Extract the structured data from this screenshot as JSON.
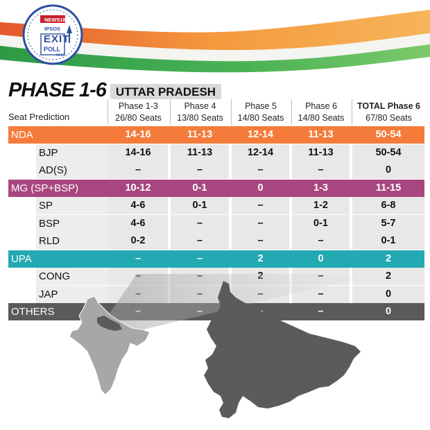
{
  "logo": {
    "brand": "NEWS18",
    "partner": "IPSOS",
    "line1": "EXIT",
    "line2": "POLL",
    "year": "2019"
  },
  "title": {
    "phase": "PHASE 1-6",
    "state": "UTTAR PRADESH"
  },
  "table": {
    "row_header": "Seat Prediction",
    "columns": [
      {
        "name": "Phase 1-3",
        "seats": "26/80 Seats",
        "bold": false
      },
      {
        "name": "Phase 4",
        "seats": "13/80 Seats",
        "bold": false
      },
      {
        "name": "Phase 5",
        "seats": "14/80 Seats",
        "bold": false
      },
      {
        "name": "Phase 6",
        "seats": "14/80 Seats",
        "bold": false
      },
      {
        "name": "TOTAL Phase 6",
        "seats": "67/80 Seats",
        "bold": true
      }
    ],
    "rows": [
      {
        "label": "NDA",
        "type": "group",
        "color": "#f47b3a",
        "values": [
          "14-16",
          "11-13",
          "12-14",
          "11-13",
          "50-54"
        ]
      },
      {
        "label": "BJP",
        "type": "party",
        "values": [
          "14-16",
          "11-13",
          "12-14",
          "11-13",
          "50-54"
        ]
      },
      {
        "label": "AD(S)",
        "type": "party",
        "values": [
          "–",
          "–",
          "–",
          "–",
          "0"
        ]
      },
      {
        "label": "MG (SP+BSP)",
        "type": "group",
        "color": "#a8477f",
        "values": [
          "10-12",
          "0-1",
          "0",
          "1-3",
          "11-15"
        ]
      },
      {
        "label": "SP",
        "type": "party",
        "values": [
          "4-6",
          "0-1",
          "–",
          "1-2",
          "6-8"
        ]
      },
      {
        "label": "BSP",
        "type": "party",
        "values": [
          "4-6",
          "–",
          "–",
          "0-1",
          "5-7"
        ]
      },
      {
        "label": "RLD",
        "type": "party",
        "values": [
          "0-2",
          "–",
          "–",
          "–",
          "0-1"
        ]
      },
      {
        "label": "UPA",
        "type": "group",
        "color": "#23a9b2",
        "values": [
          "–",
          "–",
          "2",
          "0",
          "2"
        ]
      },
      {
        "label": "CONG",
        "type": "party",
        "values": [
          "–",
          "–",
          "2",
          "–",
          "2"
        ]
      },
      {
        "label": "JAP",
        "type": "party",
        "values": [
          "–",
          "–",
          "–",
          "–",
          "0"
        ]
      },
      {
        "label": "OTHERS",
        "type": "group",
        "color": "#5a5a5a",
        "values": [
          "–",
          "–",
          "–",
          "–",
          "0"
        ]
      }
    ]
  },
  "colors": {
    "saffron": "#f28a2e",
    "green": "#3aa64a",
    "map_highlight": "#5b5b5d",
    "map_base": "#a7a7a7"
  }
}
